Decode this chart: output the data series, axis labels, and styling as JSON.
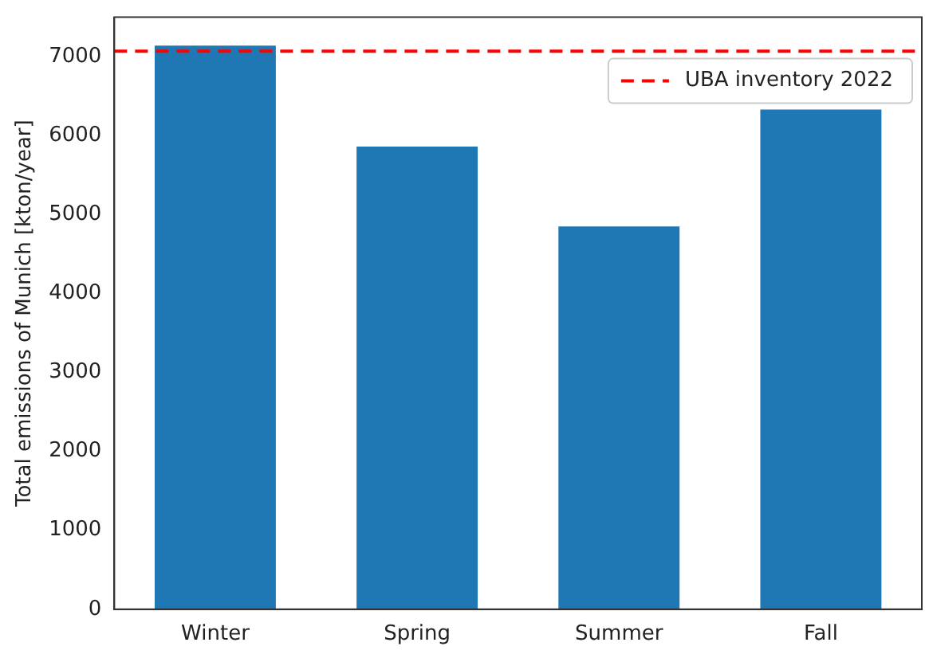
{
  "chart_data": {
    "type": "bar",
    "ylabel": "Total emissions of Munich [kton/year]",
    "categories": [
      "Winter",
      "Spring",
      "Summer",
      "Fall"
    ],
    "values": [
      7140,
      5860,
      4850,
      6330
    ],
    "color": "#1f77b4",
    "ylim": [
      0,
      7500
    ],
    "yticks": [
      0,
      1000,
      2000,
      3000,
      4000,
      5000,
      6000,
      7000
    ],
    "grid": false,
    "legend": "top right",
    "ref_lines": [
      {
        "axis": "y",
        "value": 7070,
        "label": "UBA inventory 2022",
        "color": "#ff0000",
        "line_style": "dashed"
      }
    ]
  }
}
